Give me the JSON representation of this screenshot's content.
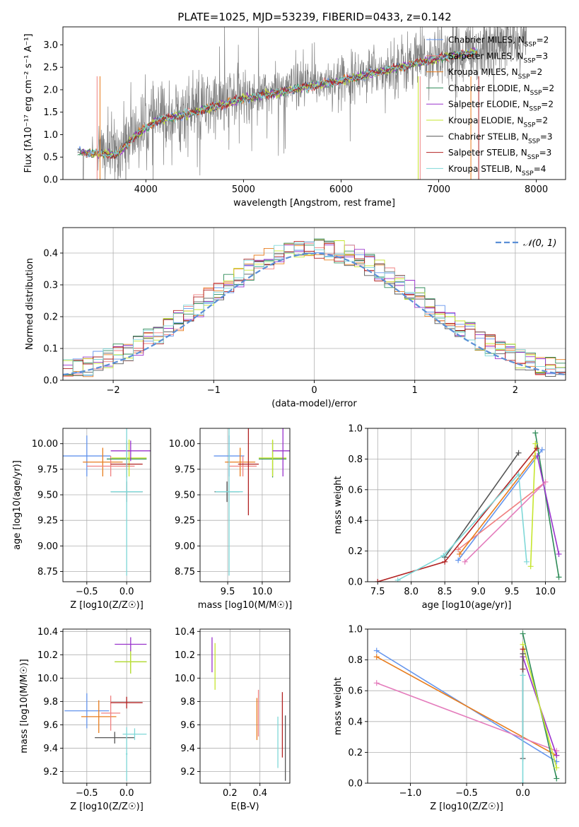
{
  "figure_title": "PLATE=1025, MJD=53239, FIBERID=0433, z=0.142",
  "colors": {
    "data": "#808080",
    "grid": "#b0b0b0",
    "cmiles": "#6495ed",
    "smiles": "#f08080",
    "kmiles": "#e87d1e",
    "celodie": "#2e8b57",
    "selodie": "#9932cc",
    "kelodie": "#c6e62e",
    "cstelib": "#555555",
    "sstelib": "#b22222",
    "kstelib": "#7fd8d8",
    "pink": "#e47cbc",
    "normal": "#5b8fd6"
  },
  "chart_data": [
    {
      "id": "spectrum",
      "type": "line",
      "title": "PLATE=1025, MJD=53239, FIBERID=0433, z=0.142",
      "xlabel": "wavelength [Angstrom, rest frame]",
      "ylabel": "Flux [fλ10⁻¹⁷ erg cm⁻² s⁻¹ A⁻¹]",
      "xlim": [
        3150,
        8300
      ],
      "ylim": [
        0,
        3.4
      ],
      "xticks": [
        "4000",
        "5000",
        "6000",
        "7000",
        "8000"
      ],
      "yticks": [
        "0.0",
        "0.5",
        "1.0",
        "1.5",
        "2.0",
        "2.5",
        "3.0"
      ],
      "legend_position": "top-right",
      "data_series": {
        "name": "data",
        "x_range": [
          3300,
          7900
        ],
        "trend_x": [
          3300,
          3500,
          3700,
          3900,
          4100,
          4500,
          5000,
          5500,
          6000,
          6500,
          7000,
          7400,
          7900
        ],
        "trend_y": [
          0.6,
          0.62,
          0.6,
          1.05,
          1.35,
          1.55,
          1.85,
          2.05,
          2.25,
          2.5,
          2.75,
          2.9,
          3.1
        ]
      },
      "series": [
        {
          "name": "Chabrier MILES, N_SSP=2",
          "color_key": "cmiles"
        },
        {
          "name": "Salpeter MILES, N_SSP=3",
          "color_key": "smiles"
        },
        {
          "name": "Kroupa MILES, N_SSP=2",
          "color_key": "kmiles"
        },
        {
          "name": "Chabrier ELODIE, N_SSP=2",
          "color_key": "celodie"
        },
        {
          "name": "Salpeter ELODIE, N_SSP=2",
          "color_key": "selodie"
        },
        {
          "name": "Kroupa ELODIE, N_SSP=2",
          "color_key": "kelodie"
        },
        {
          "name": "Chabrier STELIB, N_SSP=3",
          "color_key": "cstelib"
        },
        {
          "name": "Salpeter STELIB, N_SSP=3",
          "color_key": "sstelib"
        },
        {
          "name": "Kroupa STELIB, N_SSP=4",
          "color_key": "kstelib"
        }
      ],
      "model_trend_x": [
        3300,
        3500,
        3700,
        3900,
        4100,
        4500,
        5000,
        5500,
        6000,
        6500,
        7000,
        7400
      ],
      "model_trend_y": [
        0.6,
        0.58,
        0.55,
        1.0,
        1.3,
        1.5,
        1.8,
        2.0,
        2.2,
        2.45,
        2.7,
        2.85
      ],
      "legend_labels": [
        [
          "Chabrier MILES, N",
          "SSP",
          "=2"
        ],
        [
          "Salpeter MILES, N",
          "SSP",
          "=3"
        ],
        [
          "Kroupa MILES, N",
          "SSP",
          "=2"
        ],
        [
          "Chabrier ELODIE, N",
          "SSP",
          "=2"
        ],
        [
          "Salpeter ELODIE, N",
          "SSP",
          "=2"
        ],
        [
          "Kroupa ELODIE, N",
          "SSP",
          "=2"
        ],
        [
          "Chabrier STELIB, N",
          "SSP",
          "=3"
        ],
        [
          "Salpeter STELIB, N",
          "SSP",
          "=3"
        ],
        [
          "Kroupa STELIB, N",
          "SSP",
          "=4"
        ]
      ]
    },
    {
      "id": "residuals",
      "type": "histogram",
      "xlabel": "(data-model)/error",
      "ylabel": "Normed distribution",
      "xlim": [
        -2.5,
        2.5
      ],
      "ylim": [
        0,
        0.48
      ],
      "xticks": [
        "−2",
        "−1",
        "0",
        "1",
        "2"
      ],
      "yticks": [
        "0.0",
        "0.1",
        "0.2",
        "0.3",
        "0.4"
      ],
      "bin_width": 0.1,
      "legend": "𝒩(0, 1)",
      "legend_position": "top-right",
      "normal_curve": {
        "mean": 0,
        "sigma": 1
      }
    },
    {
      "id": "age_vs_Z",
      "type": "errorbar",
      "xlabel": "Z [log10(Z/Z☉)]",
      "ylabel": "age  [log10(age/yr)]",
      "xlim": [
        -0.8,
        0.3
      ],
      "ylim": [
        8.65,
        10.15
      ],
      "xticks": [
        "−0.5",
        "0.0"
      ],
      "yticks": [
        "8.75",
        "9.00",
        "9.25",
        "9.50",
        "9.75",
        "10.00"
      ],
      "points": [
        {
          "c": "cmiles",
          "x": -0.5,
          "xe": 0.3,
          "y": 9.88,
          "ye": 0.2
        },
        {
          "c": "kmiles",
          "x": -0.3,
          "xe": 0.25,
          "y": 9.82,
          "ye": 0.14
        },
        {
          "c": "smiles",
          "x": -0.2,
          "xe": 0.3,
          "y": 9.78,
          "ye": 0.1
        },
        {
          "c": "celodie",
          "x": 0.0,
          "xe": 0.25,
          "y": 9.85,
          "ye": 0.18
        },
        {
          "c": "kelodie",
          "x": 0.03,
          "xe": 0.22,
          "y": 9.86,
          "ye": 0.18
        },
        {
          "c": "selodie",
          "x": 0.05,
          "xe": 0.25,
          "y": 9.93,
          "ye": 0.1
        },
        {
          "c": "sstelib",
          "x": 0.0,
          "xe": 0.2,
          "y": 9.8,
          "ye": 0.05
        },
        {
          "c": "cstelib",
          "x": 0.0,
          "xe": 0.2,
          "y": 9.53,
          "ye": 0.1
        },
        {
          "c": "kstelib",
          "x": 0.0,
          "xe": 0.2,
          "y": 9.53,
          "ye": 0.82
        }
      ]
    },
    {
      "id": "age_vs_mass",
      "type": "errorbar",
      "xlabel": "mass [log10(M/M☉)]",
      "ylabel": "",
      "xlim": [
        9.1,
        10.4
      ],
      "ylim": [
        8.65,
        10.15
      ],
      "xticks": [
        "9.5",
        "10.0"
      ],
      "yticks": [
        "8.75",
        "9.00",
        "9.25",
        "9.50",
        "9.75",
        "10.00"
      ],
      "points": [
        {
          "c": "cmiles",
          "x": 9.52,
          "xe": 0.22,
          "y": 9.88,
          "ye": 0.2
        },
        {
          "c": "kmiles",
          "x": 9.68,
          "xe": 0.22,
          "y": 9.82,
          "ye": 0.14
        },
        {
          "c": "smiles",
          "x": 9.72,
          "xe": 0.2,
          "y": 9.78,
          "ye": 0.1
        },
        {
          "c": "celodie",
          "x": 10.15,
          "xe": 0.2,
          "y": 9.85,
          "ye": 0.18
        },
        {
          "c": "kelodie",
          "x": 10.15,
          "xe": 0.2,
          "y": 9.86,
          "ye": 0.18
        },
        {
          "c": "selodie",
          "x": 10.3,
          "xe": 0.15,
          "y": 9.93,
          "ye": 0.25
        },
        {
          "c": "sstelib",
          "x": 9.8,
          "xe": 0.15,
          "y": 9.8,
          "ye": 0.5
        },
        {
          "c": "cstelib",
          "x": 9.49,
          "xe": 0.18,
          "y": 9.53,
          "ye": 0.1
        },
        {
          "c": "kstelib",
          "x": 9.52,
          "xe": 0.2,
          "y": 9.53,
          "ye": 0.82
        }
      ]
    },
    {
      "id": "mw_vs_age",
      "type": "line",
      "xlabel": "age  [log10(age/yr)]",
      "ylabel": "mass weight",
      "xlim": [
        7.35,
        10.3
      ],
      "ylim": [
        0,
        1.0
      ],
      "xticks": [
        "7.5",
        "8.0",
        "8.5",
        "9.0",
        "9.5",
        "10.0"
      ],
      "yticks": [
        "0.0",
        "0.2",
        "0.4",
        "0.6",
        "0.8",
        "1.0"
      ],
      "series": [
        {
          "c": "cmiles",
          "x": [
            8.7,
            9.95
          ],
          "y": [
            0.14,
            0.86
          ]
        },
        {
          "c": "smiles",
          "x": [
            8.7,
            10.0
          ],
          "y": [
            0.21,
            0.65
          ]
        },
        {
          "c": "kmiles",
          "x": [
            8.72,
            9.85
          ],
          "y": [
            0.18,
            0.82
          ]
        },
        {
          "c": "celodie",
          "x": [
            9.85,
            10.2
          ],
          "y": [
            0.97,
            0.03
          ]
        },
        {
          "c": "selodie",
          "x": [
            9.88,
            10.2
          ],
          "y": [
            0.82,
            0.18
          ]
        },
        {
          "c": "kelodie",
          "x": [
            9.78,
            9.85
          ],
          "y": [
            0.1,
            0.9
          ]
        },
        {
          "c": "cstelib",
          "x": [
            8.5,
            9.6
          ],
          "y": [
            0.16,
            0.84
          ]
        },
        {
          "c": "sstelib",
          "x": [
            7.5,
            8.5,
            9.87
          ],
          "y": [
            0.0,
            0.13,
            0.87
          ]
        },
        {
          "c": "kstelib",
          "x": [
            7.8,
            8.48,
            9.6,
            9.72
          ],
          "y": [
            0.01,
            0.17,
            0.7,
            0.13
          ]
        },
        {
          "c": "pink",
          "x": [
            8.8,
            10.0
          ],
          "y": [
            0.13,
            0.65
          ]
        }
      ]
    },
    {
      "id": "mass_vs_Z",
      "type": "errorbar",
      "xlabel": "Z [log10(Z/Z☉)]",
      "ylabel": "mass [log10(M/M☉)]",
      "xlim": [
        -0.8,
        0.3
      ],
      "ylim": [
        9.1,
        10.42
      ],
      "xticks": [
        "−0.5",
        "0.0"
      ],
      "yticks": [
        "9.2",
        "9.4",
        "9.6",
        "9.8",
        "10.0",
        "10.2",
        "10.4"
      ],
      "points": [
        {
          "c": "cmiles",
          "x": -0.5,
          "xe": 0.28,
          "y": 9.72,
          "ye": 0.15
        },
        {
          "c": "kmiles",
          "x": -0.35,
          "xe": 0.22,
          "y": 9.67,
          "ye": 0.14
        },
        {
          "c": "smiles",
          "x": -0.2,
          "xe": 0.12,
          "y": 9.7,
          "ye": 0.15
        },
        {
          "c": "celodie",
          "x": 0.05,
          "xe": 0.2,
          "y": 10.14,
          "ye": 0.1
        },
        {
          "c": "kelodie",
          "x": 0.05,
          "xe": 0.2,
          "y": 10.14,
          "ye": 0.1
        },
        {
          "c": "selodie",
          "x": 0.05,
          "xe": 0.2,
          "y": 10.29,
          "ye": 0.06
        },
        {
          "c": "sstelib",
          "x": 0.0,
          "xe": 0.2,
          "y": 9.79,
          "ye": 0.05
        },
        {
          "c": "cstelib",
          "x": -0.15,
          "xe": 0.25,
          "y": 9.49,
          "ye": 0.05
        },
        {
          "c": "kstelib",
          "x": 0.1,
          "xe": 0.15,
          "y": 9.52,
          "ye": 0.05
        },
        {
          "c": "kstelib",
          "x": 0.0,
          "xe": 0.01,
          "y": 9.35,
          "ye": 0.23
        }
      ]
    },
    {
      "id": "mass_vs_ebv",
      "type": "errorbar",
      "xlabel": "E(B-V)",
      "ylabel": "",
      "xlim": [
        0.0,
        0.6
      ],
      "ylim": [
        9.1,
        10.42
      ],
      "xticks": [
        "0.2",
        "0.4"
      ],
      "yticks": [
        "9.2",
        "9.4",
        "9.6",
        "9.8",
        "10.0",
        "10.2",
        "10.4"
      ],
      "points": [
        {
          "c": "selodie",
          "x": 0.08,
          "y": 10.2,
          "ye": 0.15
        },
        {
          "c": "kelodie",
          "x": 0.1,
          "y": 10.1,
          "ye": 0.2
        },
        {
          "c": "smiles",
          "x": 0.39,
          "y": 9.7,
          "ye": 0.2
        },
        {
          "c": "kmiles",
          "x": 0.38,
          "y": 9.65,
          "ye": 0.18
        },
        {
          "c": "kstelib",
          "x": 0.52,
          "y": 9.45,
          "ye": 0.22
        },
        {
          "c": "sstelib",
          "x": 0.55,
          "y": 9.6,
          "ye": 0.28
        },
        {
          "c": "cstelib",
          "x": 0.57,
          "y": 9.4,
          "ye": 0.28
        }
      ]
    },
    {
      "id": "mw_vs_Z",
      "type": "line",
      "xlabel": "Z [log10(Z/Z☉)]",
      "ylabel": "mass weight",
      "xlim": [
        -1.38,
        0.38
      ],
      "ylim": [
        0,
        1.0
      ],
      "xticks": [
        "−1.0",
        "−0.5",
        "0.0"
      ],
      "yticks": [
        "0.0",
        "0.2",
        "0.4",
        "0.6",
        "0.8",
        "1.0"
      ],
      "series": [
        {
          "c": "cmiles",
          "x": [
            -1.3,
            0.3
          ],
          "y": [
            0.86,
            0.14
          ]
        },
        {
          "c": "kmiles",
          "x": [
            -1.3,
            0.3
          ],
          "y": [
            0.82,
            0.18
          ]
        },
        {
          "c": "pink",
          "x": [
            -1.3,
            0.3
          ],
          "y": [
            0.65,
            0.21
          ]
        },
        {
          "c": "celodie",
          "x": [
            0.0,
            0.3
          ],
          "y": [
            0.97,
            0.03
          ]
        },
        {
          "c": "selodie",
          "x": [
            0.0,
            0.3
          ],
          "y": [
            0.82,
            0.18
          ]
        },
        {
          "c": "kelodie",
          "x": [
            0.0,
            0.3
          ],
          "y": [
            0.9,
            0.1
          ]
        },
        {
          "c": "sstelib",
          "x": [
            0.0,
            0.0
          ],
          "y": [
            0.87,
            0.74
          ]
        },
        {
          "c": "cstelib",
          "x": [
            0.0,
            0.0
          ],
          "y": [
            0.84,
            0.16
          ]
        },
        {
          "c": "kstelib",
          "x": [
            0.0,
            0.0
          ],
          "y": [
            0.7,
            0.0
          ]
        }
      ]
    }
  ]
}
